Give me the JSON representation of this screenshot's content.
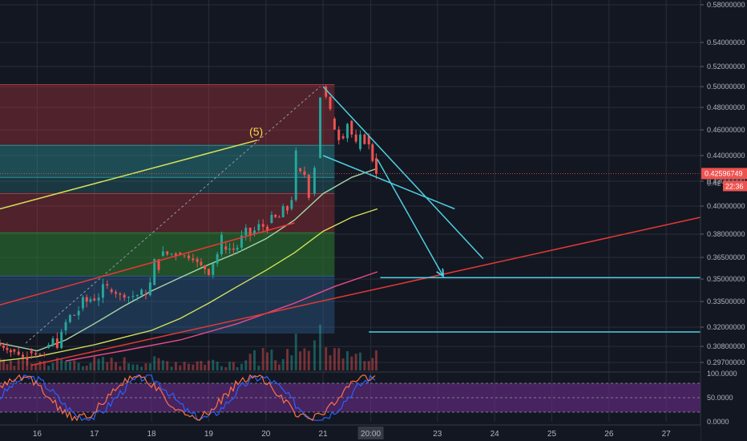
{
  "chart_data": {
    "type": "candlestick",
    "instrument_timeframe": "4h",
    "colors": {
      "background": "#131722",
      "up": "#26a69a",
      "down": "#ef5350",
      "grid": "#2a2e39",
      "fib_red": "#b2353d",
      "fib_teal": "#2a8f93",
      "fib_green": "#2e7d32",
      "fib_blue": "#2c5c8a",
      "trendline_cyan": "#4dd0e1",
      "ma_fast": "#a5d6a7",
      "ma_mid": "#d4e157",
      "ma_slow": "#e84a8a",
      "trend_red": "#e53935",
      "oscillator_band": "#6a2c8a",
      "osc_k": "#2962ff",
      "osc_d": "#ff7043"
    },
    "price_axis": {
      "ylim": [
        0.297,
        0.585
      ],
      "ticks": [
        "0.58000000",
        "0.54000000",
        "0.52000000",
        "0.50000000",
        "0.48000000",
        "0.46000000",
        "0.44000000",
        "0.42000000",
        "0.40000000",
        "0.38000000",
        "0.36500000",
        "0.35000000",
        "0.33500000",
        "0.32000000",
        "0.30800000",
        "0.29700000"
      ],
      "tick_values": [
        0.58,
        0.54,
        0.52,
        0.5,
        0.48,
        0.46,
        0.44,
        0.42,
        0.4,
        0.38,
        0.365,
        0.35,
        0.335,
        0.32,
        0.308,
        0.297
      ],
      "current_price_label": "0.42596749",
      "current_price": 0.42597,
      "countdown_label": "22:36"
    },
    "time_axis": {
      "xlim": [
        15.35,
        27.6
      ],
      "ticks": [
        "16",
        "17",
        "18",
        "19",
        "20",
        "21",
        "20:00",
        "23",
        "24",
        "25",
        "26",
        "27"
      ],
      "tick_values": [
        16,
        17,
        18,
        19,
        20,
        21,
        21.833,
        23,
        24,
        25,
        26,
        27
      ]
    },
    "annotations": [
      {
        "label": "(5)",
        "x": 19.85,
        "y": 0.452
      }
    ],
    "fib_zones": [
      {
        "y0": 0.448,
        "y1": 0.502,
        "color": "red",
        "x1": 21.2
      },
      {
        "y0": 0.423,
        "y1": 0.448,
        "color": "teal",
        "x1": 21.2
      },
      {
        "y0": 0.41,
        "y1": 0.423,
        "color": "teal_light",
        "x1": 21.2
      },
      {
        "y0": 0.381,
        "y1": 0.41,
        "color": "red",
        "x1": 21.2
      },
      {
        "y0": 0.352,
        "y1": 0.381,
        "color": "green",
        "x1": 21.2
      },
      {
        "y0": 0.316,
        "y1": 0.352,
        "color": "blue",
        "x1": 21.2
      }
    ],
    "candles_anchor": [
      [
        15.35,
        0.31,
        0.304
      ],
      [
        15.6,
        0.306,
        0.299
      ],
      [
        15.9,
        0.305,
        0.301
      ],
      [
        16.2,
        0.307,
        0.313
      ],
      [
        16.5,
        0.318,
        0.331
      ],
      [
        16.8,
        0.331,
        0.337
      ],
      [
        17.0,
        0.337,
        0.343
      ],
      [
        17.3,
        0.343,
        0.338
      ],
      [
        17.6,
        0.338,
        0.34
      ],
      [
        17.9,
        0.34,
        0.346
      ],
      [
        18.05,
        0.346,
        0.366
      ],
      [
        18.2,
        0.366,
        0.368
      ],
      [
        18.5,
        0.368,
        0.364
      ],
      [
        18.8,
        0.364,
        0.357
      ],
      [
        19.0,
        0.357,
        0.372
      ],
      [
        19.3,
        0.372,
        0.37
      ],
      [
        19.5,
        0.37,
        0.38
      ],
      [
        19.8,
        0.38,
        0.388
      ],
      [
        20.1,
        0.388,
        0.392
      ],
      [
        20.3,
        0.392,
        0.398
      ],
      [
        20.45,
        0.398,
        0.43
      ],
      [
        20.6,
        0.43,
        0.425
      ],
      [
        20.75,
        0.425,
        0.41
      ],
      [
        20.85,
        0.41,
        0.438
      ],
      [
        20.95,
        0.438,
        0.5
      ],
      [
        21.05,
        0.5,
        0.47
      ],
      [
        21.2,
        0.47,
        0.455
      ],
      [
        21.35,
        0.455,
        0.468
      ],
      [
        21.5,
        0.468,
        0.445
      ],
      [
        21.65,
        0.445,
        0.455
      ],
      [
        21.8,
        0.455,
        0.438
      ],
      [
        21.93,
        0.438,
        0.426
      ]
    ],
    "moving_averages": [
      {
        "color": "ma_fast",
        "points": [
          [
            15.35,
            0.31
          ],
          [
            16.0,
            0.305
          ],
          [
            16.5,
            0.312
          ],
          [
            17.0,
            0.322
          ],
          [
            17.5,
            0.332
          ],
          [
            18.0,
            0.342
          ],
          [
            18.5,
            0.351
          ],
          [
            19.0,
            0.36
          ],
          [
            19.5,
            0.368
          ],
          [
            20.0,
            0.377
          ],
          [
            20.5,
            0.39
          ],
          [
            21.0,
            0.41
          ],
          [
            21.5,
            0.423
          ],
          [
            21.95,
            0.43
          ]
        ]
      },
      {
        "color": "ma_mid",
        "points": [
          [
            15.35,
            0.298
          ],
          [
            16.0,
            0.301
          ],
          [
            17.0,
            0.309
          ],
          [
            18.0,
            0.318
          ],
          [
            18.5,
            0.325
          ],
          [
            19.0,
            0.334
          ],
          [
            19.5,
            0.345
          ],
          [
            20.0,
            0.356
          ],
          [
            20.5,
            0.368
          ],
          [
            21.0,
            0.382
          ],
          [
            21.5,
            0.392
          ],
          [
            21.95,
            0.398
          ]
        ]
      },
      {
        "color": "ma_slow",
        "points": [
          [
            16.5,
            0.298
          ],
          [
            17.5,
            0.305
          ],
          [
            18.5,
            0.312
          ],
          [
            19.5,
            0.322
          ],
          [
            20.5,
            0.334
          ],
          [
            21.2,
            0.345
          ],
          [
            21.95,
            0.355
          ]
        ]
      }
    ],
    "trendlines": [
      {
        "color": "ma_mid",
        "x0": 15.35,
        "y0": 0.398,
        "x1": 19.85,
        "y1": 0.452
      },
      {
        "color": "trend_red",
        "x0": 15.35,
        "y0": 0.333,
        "x1": 20.5,
        "y1": 0.388
      },
      {
        "color": "trend_red",
        "x0": 15.9,
        "y0": 0.295,
        "x1": 27.6,
        "y1": 0.392
      },
      {
        "color": "trendline_cyan",
        "x0": 21.0,
        "y0": 0.5,
        "x1": 23.8,
        "y1": 0.364
      },
      {
        "color": "trendline_cyan",
        "x0": 21.0,
        "y0": 0.44,
        "x1": 23.3,
        "y1": 0.398
      },
      {
        "color": "trendline_cyan",
        "x0": 21.95,
        "y0": 0.437,
        "x1": 23.1,
        "y1": 0.352,
        "arrow": true
      },
      {
        "color": "trendline_cyan",
        "x0": 22.0,
        "y0": 0.351,
        "x1": 27.6,
        "y1": 0.351
      },
      {
        "color": "trendline_cyan",
        "x0": 21.8,
        "y0": 0.317,
        "x1": 27.6,
        "y1": 0.317
      }
    ],
    "oscillator": {
      "ticks": [
        "100.0000",
        "50.0000",
        "0.0000"
      ],
      "tick_values": [
        100,
        50,
        0
      ],
      "band": [
        20,
        80
      ]
    }
  }
}
